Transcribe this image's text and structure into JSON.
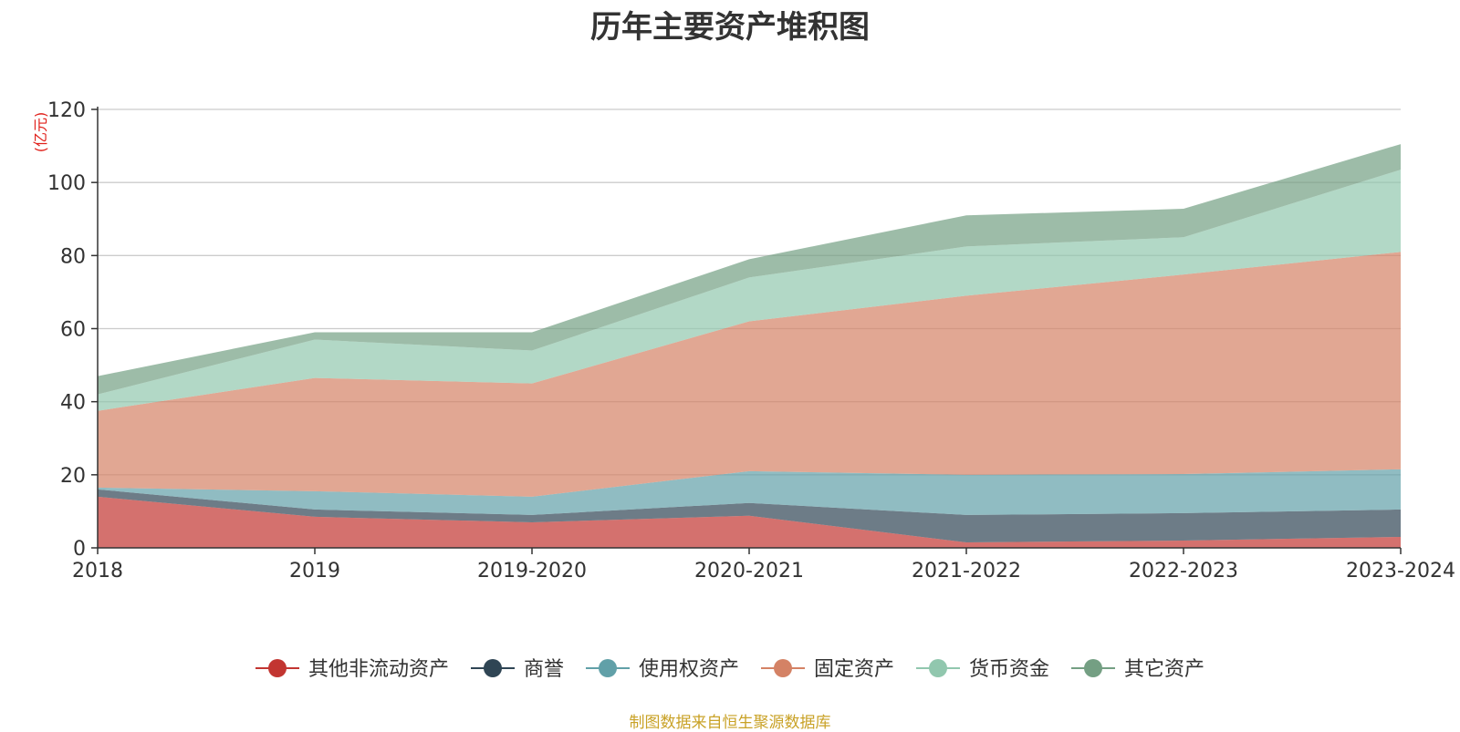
{
  "chart_data": {
    "type": "area",
    "stacked": true,
    "title": "历年主要资产堆积图",
    "unit_label": "(亿元)",
    "x": [
      "2018",
      "2019",
      "2019-2020",
      "2020-2021",
      "2021-2022",
      "2022-2023",
      "2023-2024"
    ],
    "yticks": [
      "0",
      "20",
      "40",
      "60",
      "80",
      "100",
      "120"
    ],
    "ylim": [
      0,
      120
    ],
    "grid": true,
    "legend_position": "bottom",
    "series": [
      {
        "name": "其他非流动资产",
        "color": "#c23531",
        "values": [
          14.0,
          8.5,
          7.0,
          8.8,
          1.5,
          2.0,
          3.0
        ]
      },
      {
        "name": "商誉",
        "color": "#2f4554",
        "values": [
          2.0,
          2.0,
          2.0,
          3.5,
          7.5,
          7.5,
          7.5
        ]
      },
      {
        "name": "使用权资产",
        "color": "#61a0a8",
        "values": [
          0.5,
          5.0,
          5.0,
          8.7,
          11.0,
          10.7,
          11.0
        ]
      },
      {
        "name": "固定资产",
        "color": "#d48265",
        "values": [
          21.0,
          31.0,
          31.0,
          41.0,
          49.0,
          54.6,
          59.5
        ]
      },
      {
        "name": "货币资金",
        "color": "#91c7ae",
        "values": [
          4.5,
          10.5,
          9.0,
          12.0,
          13.5,
          10.2,
          22.5
        ]
      },
      {
        "name": "其它资产",
        "color": "#749f83",
        "values": [
          5.0,
          2.0,
          5.0,
          5.0,
          8.5,
          7.8,
          7.0
        ]
      }
    ],
    "source_note": "制图数据来自恒生聚源数据库"
  }
}
